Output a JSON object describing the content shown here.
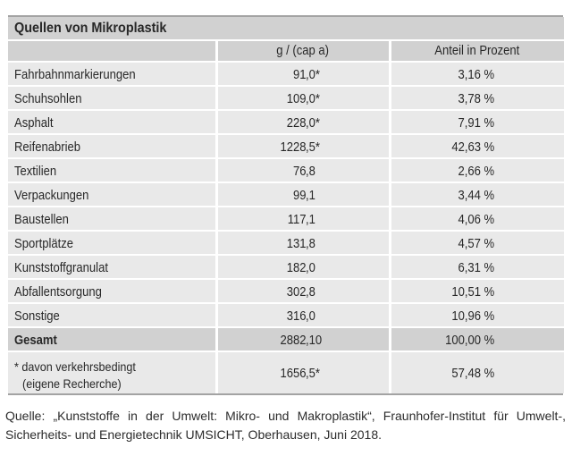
{
  "table": {
    "title": "Quellen von Mikroplastik",
    "columns": {
      "label": "",
      "value": "g / (cap a)",
      "percent": "Anteil in Prozent"
    },
    "rows": [
      {
        "label": "Fahrbahnmarkierungen",
        "value": "91,0*",
        "percent": "3,16 %"
      },
      {
        "label": "Schuhsohlen",
        "value": "109,0*",
        "percent": "3,78 %"
      },
      {
        "label": "Asphalt",
        "value": "228,0*",
        "percent": "7,91 %"
      },
      {
        "label": "Reifenabrieb",
        "value": "1228,5*",
        "percent": "42,63 %"
      },
      {
        "label": "Textilien",
        "value": "76,8",
        "percent": "2,66 %"
      },
      {
        "label": "Verpackungen",
        "value": "99,1",
        "percent": "3,44 %"
      },
      {
        "label": "Baustellen",
        "value": "117,1",
        "percent": "4,06 %"
      },
      {
        "label": "Sportplätze",
        "value": "131,8",
        "percent": "4,57 %"
      },
      {
        "label": "Kunststoffgranulat",
        "value": "182,0",
        "percent": "6,31 %"
      },
      {
        "label": "Abfallentsorgung",
        "value": "302,8",
        "percent": "10,51 %"
      },
      {
        "label": "Sonstige",
        "value": "316,0",
        "percent": "10,96 %"
      }
    ],
    "total_row": {
      "label": "Gesamt",
      "value": "2882,10",
      "percent": "100,00 %"
    },
    "footnote_row": {
      "label_line1": "* davon verkehrsbedingt",
      "label_line2": "(eigene Recherche)",
      "value": "1656,5*",
      "percent": "57,48 %"
    }
  },
  "source": {
    "line1": "Quelle: „Kunststoffe in der Umwelt: Mikro- und Makroplastik“, Fraunhofer-Institut für Umwelt-,",
    "line2": "Sicherheits- und Energietechnik UMSICHT, Oberhausen, Juni 2018."
  },
  "colors": {
    "shade-medium": "#d1d1d1",
    "shade-light": "#e9e9e9",
    "rule": "#a3a3a3",
    "ink": "#282828",
    "ink-soft": "#2c2c2c"
  }
}
